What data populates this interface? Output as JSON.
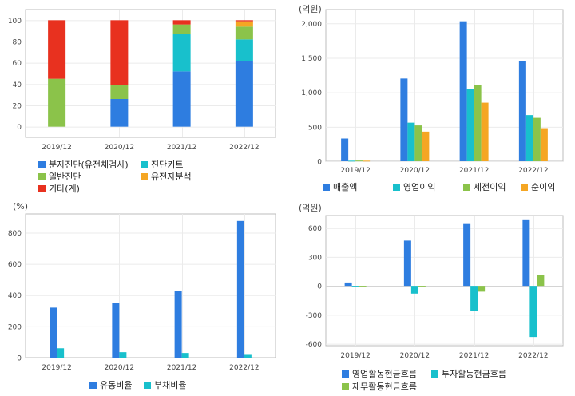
{
  "colors": {
    "blue": "#2e7de0",
    "cyan": "#18c0cc",
    "green": "#8bc34a",
    "orange": "#f5a623",
    "red": "#e8311f"
  },
  "chart_data": [
    {
      "type": "bar",
      "stacked": true,
      "unit": "",
      "categories": [
        "2019/12",
        "2020/12",
        "2021/12",
        "2022/12"
      ],
      "ylim": [
        -10,
        110
      ],
      "yticks": [
        0,
        20,
        40,
        60,
        80,
        100
      ],
      "grid": true,
      "series": [
        {
          "name": "분자진단(유전체검사)",
          "color": "blue",
          "values": [
            0,
            26,
            52,
            62
          ]
        },
        {
          "name": "진단키트",
          "color": "cyan",
          "values": [
            0,
            0,
            35,
            20
          ]
        },
        {
          "name": "일반진단",
          "color": "green",
          "values": [
            45,
            13,
            9,
            12
          ]
        },
        {
          "name": "유전자분석",
          "color": "orange",
          "values": [
            0,
            0,
            0,
            5
          ]
        },
        {
          "name": "기타(계)",
          "color": "red",
          "values": [
            55,
            61,
            4,
            1
          ]
        }
      ]
    },
    {
      "type": "bar",
      "unit": "(억원)",
      "categories": [
        "2019/12",
        "2020/12",
        "2021/12",
        "2022/12"
      ],
      "ylim": [
        0,
        2200
      ],
      "yticks": [
        0,
        500,
        1000,
        1500,
        2000
      ],
      "ytick_labels": [
        "0",
        "500",
        "1,000",
        "1,500",
        "2,000"
      ],
      "grid": true,
      "series": [
        {
          "name": "매출액",
          "color": "blue",
          "values": [
            330,
            1200,
            2030,
            1450
          ]
        },
        {
          "name": "영업이익",
          "color": "cyan",
          "values": [
            8,
            560,
            1050,
            670
          ]
        },
        {
          "name": "세전이익",
          "color": "green",
          "values": [
            10,
            520,
            1100,
            630
          ]
        },
        {
          "name": "순이익",
          "color": "orange",
          "values": [
            8,
            430,
            850,
            480
          ]
        }
      ]
    },
    {
      "type": "bar",
      "unit": "(%)",
      "categories": [
        "2019/12",
        "2020/12",
        "2021/12",
        "2022/12"
      ],
      "ylim": [
        0,
        920
      ],
      "yticks": [
        0,
        200,
        400,
        600,
        800
      ],
      "ytick_labels": [
        "0",
        "200",
        "400",
        "600",
        "800"
      ],
      "grid": true,
      "series": [
        {
          "name": "유동비율",
          "color": "blue",
          "values": [
            320,
            350,
            425,
            875
          ]
        },
        {
          "name": "부채비율",
          "color": "cyan",
          "values": [
            60,
            35,
            30,
            18
          ]
        }
      ]
    },
    {
      "type": "bar",
      "unit": "(억원)",
      "categories": [
        "2019/12",
        "2020/12",
        "2021/12",
        "2022/12"
      ],
      "ylim": [
        -620,
        730
      ],
      "yticks": [
        -600,
        -300,
        0,
        300,
        600
      ],
      "ytick_labels": [
        "-600",
        "-300",
        "0",
        "300",
        "600"
      ],
      "grid": true,
      "series": [
        {
          "name": "영업활동현금흐름",
          "color": "blue",
          "values": [
            35,
            470,
            650,
            690
          ]
        },
        {
          "name": "투자활동현금흐름",
          "color": "cyan",
          "values": [
            -5,
            -80,
            -260,
            -530
          ]
        },
        {
          "name": "재무활동현금흐름",
          "color": "green",
          "values": [
            -15,
            -5,
            -60,
            115
          ]
        }
      ]
    }
  ]
}
